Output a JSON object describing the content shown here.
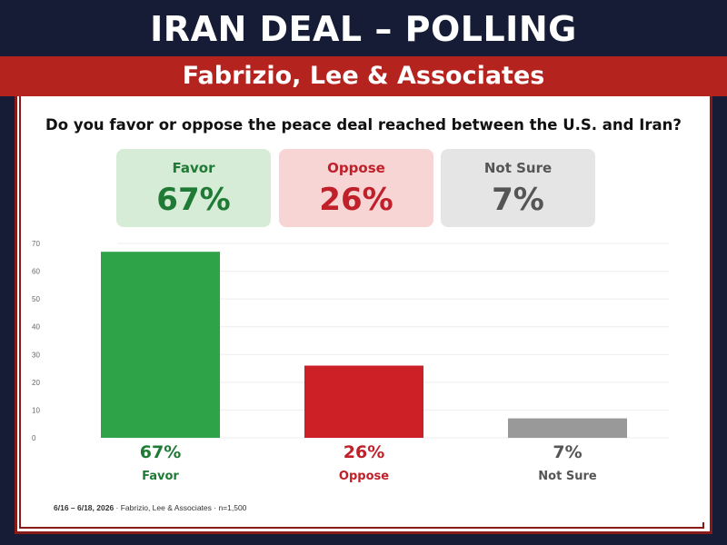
{
  "title": "IRAN DEAL – POLLING",
  "pollster_banner": "Fabrizio, Lee & Associates",
  "question": "Do you favor or oppose the peace deal reached between the U.S. and Iran?",
  "summary_boxes": [
    {
      "label": "Favor",
      "value": "67%",
      "bg": "#d6ecd6",
      "color": "#1f7a35"
    },
    {
      "label": "Oppose",
      "value": "26%",
      "bg": "#f8d5d5",
      "color": "#c0202a"
    },
    {
      "label": "Not Sure",
      "value": "7%",
      "bg": "#e5e5e5",
      "color": "#555555"
    }
  ],
  "footnote": {
    "dates": "6/16 – 6/18, 2026",
    "source": " · Fabrizio, Lee & Associates · n=1,500"
  },
  "chart_data": {
    "type": "bar",
    "categories": [
      "Favor",
      "Oppose",
      "Not Sure"
    ],
    "values": [
      67,
      26,
      7
    ],
    "data_labels": [
      "67%",
      "26%",
      "7%"
    ],
    "colors": [
      "#2ea348",
      "#cc1f26",
      "#999999"
    ],
    "label_colors": [
      "#1f7a35",
      "#c0202a",
      "#555555"
    ],
    "ylim": [
      0,
      70
    ],
    "yticks": [
      0,
      10,
      20,
      30,
      40,
      50,
      60,
      70
    ],
    "grid": true,
    "title": "",
    "xlabel": "",
    "ylabel": ""
  }
}
